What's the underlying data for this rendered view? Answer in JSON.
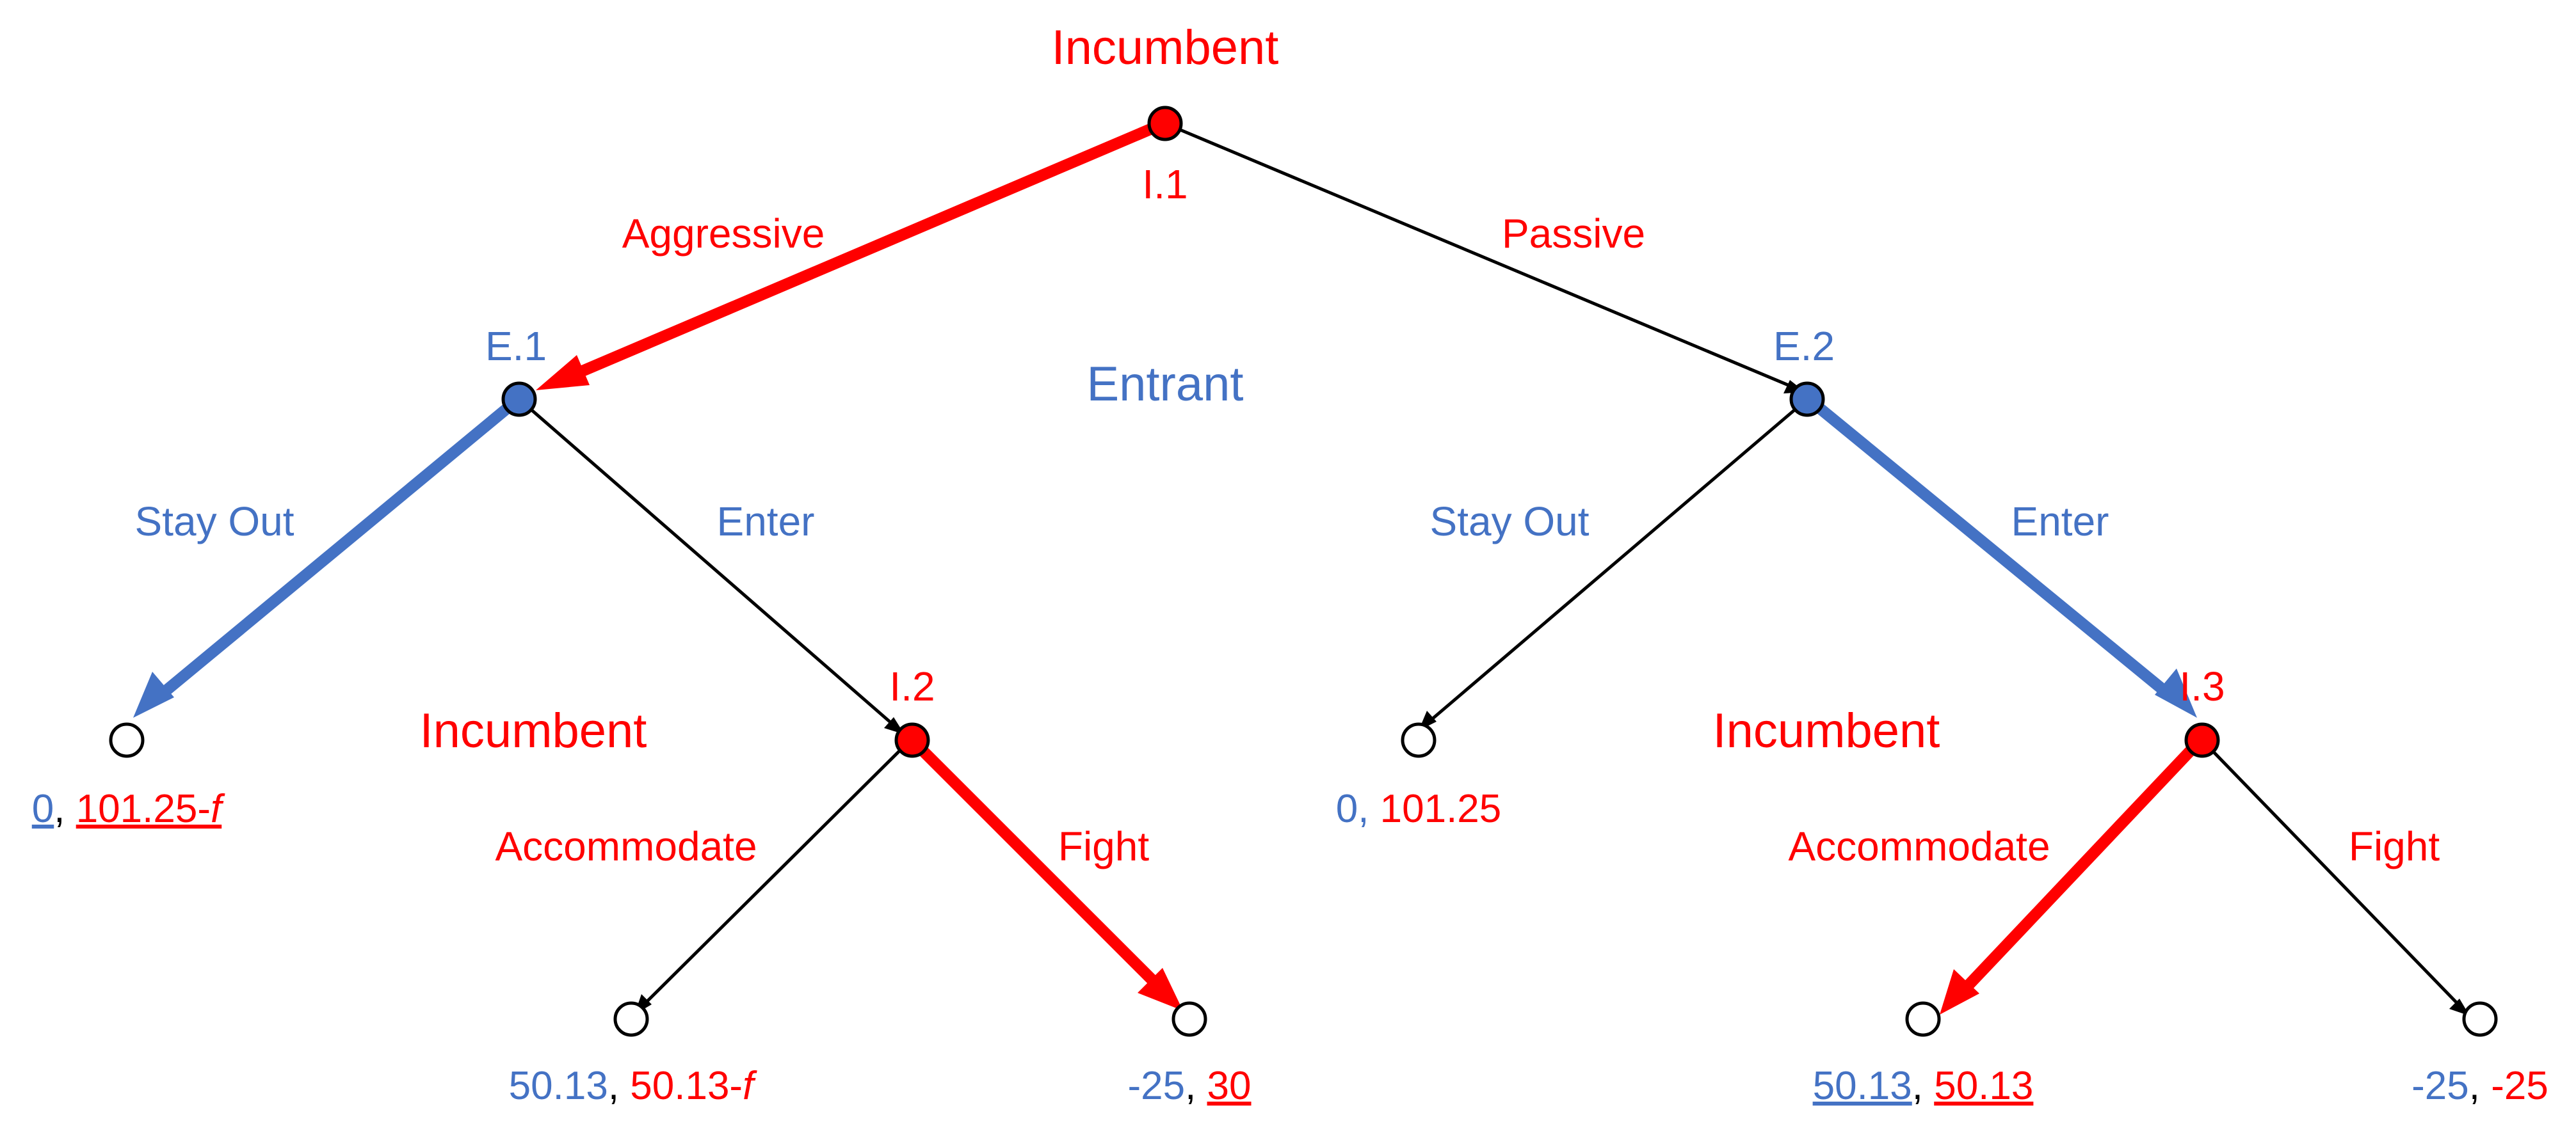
{
  "colors": {
    "incumbent": "#ff0000",
    "entrant": "#4472c4",
    "line": "#000000",
    "terminal_fill": "#ffffff"
  },
  "players": {
    "incumbent_top": "Incumbent",
    "entrant_mid": "Entrant",
    "incumbent_left": "Incumbent",
    "incumbent_right": "Incumbent"
  },
  "nodes": {
    "i1": "I.1",
    "e1": "E.1",
    "e2": "E.2",
    "i2": "I.2",
    "i3": "I.3"
  },
  "actions": {
    "aggressive": "Aggressive",
    "passive": "Passive",
    "stay_out_left": "Stay Out",
    "enter_left": "Enter",
    "stay_out_right": "Stay Out",
    "enter_right": "Enter",
    "accommodate_left": "Accommodate",
    "fight_left": "Fight",
    "accommodate_right": "Accommodate",
    "fight_right": "Fight"
  },
  "payoffs": {
    "t1": {
      "entrant": "0",
      "sep": ", ",
      "incumbent": "101.25-",
      "var": "f"
    },
    "t2": {
      "entrant": "50.13",
      "sep": ", ",
      "incumbent": "50.13-",
      "var": "f"
    },
    "t3": {
      "entrant": "-25",
      "sep": ", ",
      "incumbent": "30"
    },
    "t4": {
      "entrant": "0",
      "sep": ", ",
      "incumbent": "101.25"
    },
    "t5": {
      "entrant": "50.13",
      "sep": ", ",
      "incumbent": "50.13"
    },
    "t6": {
      "entrant": "-25",
      "sep": ", ",
      "incumbent": "-25"
    }
  }
}
